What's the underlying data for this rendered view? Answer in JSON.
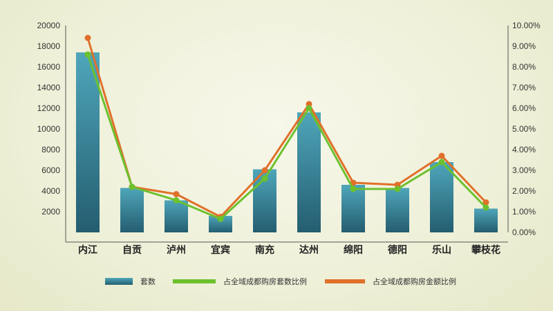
{
  "chart_data": {
    "type": "bar+line",
    "categories": [
      "内江",
      "自贡",
      "泸州",
      "宜宾",
      "南充",
      "达州",
      "绵阳",
      "德阳",
      "乐山",
      "攀枝花"
    ],
    "series": [
      {
        "name": "套数",
        "type": "bar",
        "axis": "left",
        "values": [
          17400,
          4300,
          3100,
          1600,
          6100,
          11600,
          4600,
          4300,
          6800,
          2300
        ]
      },
      {
        "name": "占全域成都购房套数比例",
        "type": "line",
        "axis": "right",
        "values": [
          8.6,
          2.2,
          1.55,
          0.65,
          2.6,
          6.0,
          2.1,
          2.1,
          3.4,
          1.2
        ]
      },
      {
        "name": "占全域成都购房金额比例",
        "type": "line",
        "axis": "right",
        "values": [
          9.4,
          2.2,
          1.85,
          0.75,
          3.0,
          6.2,
          2.4,
          2.3,
          3.7,
          1.45
        ]
      }
    ],
    "left_ticks": [
      "2000",
      "4000",
      "6000",
      "8000",
      "10000",
      "12000",
      "14000",
      "16000",
      "18000",
      "20000"
    ],
    "right_ticks": [
      "0.00%",
      "1.00%",
      "2.00%",
      "3.00%",
      "4.00%",
      "5.00%",
      "6.00%",
      "7.00%",
      "8.00%",
      "9.00%",
      "10.00%"
    ],
    "ylim_left": [
      0,
      20000
    ],
    "ylim_right": [
      0,
      10
    ],
    "legend_position": "bottom",
    "colors": {
      "bar": "#2f7f96",
      "bar_light": "#4fa6ba",
      "bar_dark": "#245d70",
      "green": "#6cc12e",
      "orange": "#e0702a"
    }
  }
}
